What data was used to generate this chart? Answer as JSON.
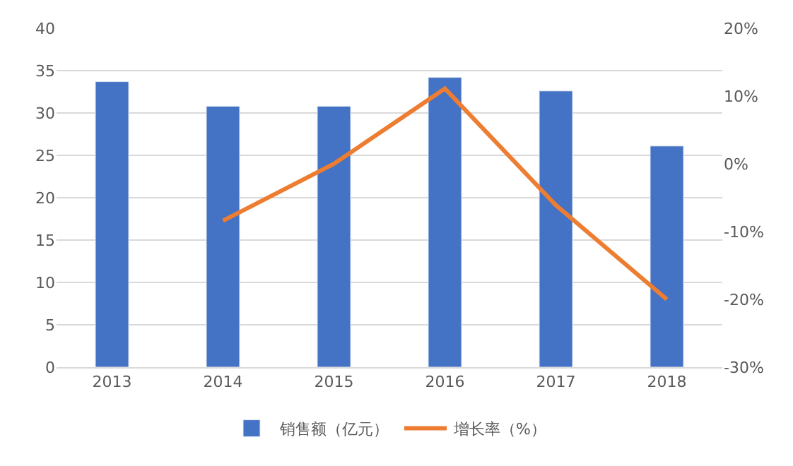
{
  "chart_data": {
    "type": "bar",
    "categories": [
      "2013",
      "2014",
      "2015",
      "2016",
      "2017",
      "2018"
    ],
    "series": [
      {
        "name": "销售额（亿元）",
        "color": "#4472c4",
        "values": [
          33.7,
          30.8,
          30.8,
          34.2,
          32.6,
          26.1
        ]
      },
      {
        "name": "增长率（%）",
        "type": "line",
        "axis": "y2",
        "color": "#ed7d31",
        "values": [
          null,
          -8.4,
          0.0,
          11.1,
          -6.1,
          -20.0
        ]
      }
    ],
    "ylim": [
      0,
      40
    ],
    "yticks": [
      0,
      5,
      10,
      15,
      20,
      25,
      30,
      35,
      40
    ],
    "y2lim": [
      -30,
      20
    ],
    "y2ticks": [
      {
        "value": -30,
        "label": "-30%"
      },
      {
        "value": -20,
        "label": "-20%"
      },
      {
        "value": -10,
        "label": "-10%"
      },
      {
        "value": 0,
        "label": "0%"
      },
      {
        "value": 10,
        "label": "10%"
      },
      {
        "value": 20,
        "label": "20%"
      }
    ],
    "grid": "y",
    "legend": "bottom",
    "marker": "none",
    "line_style": "solid"
  }
}
